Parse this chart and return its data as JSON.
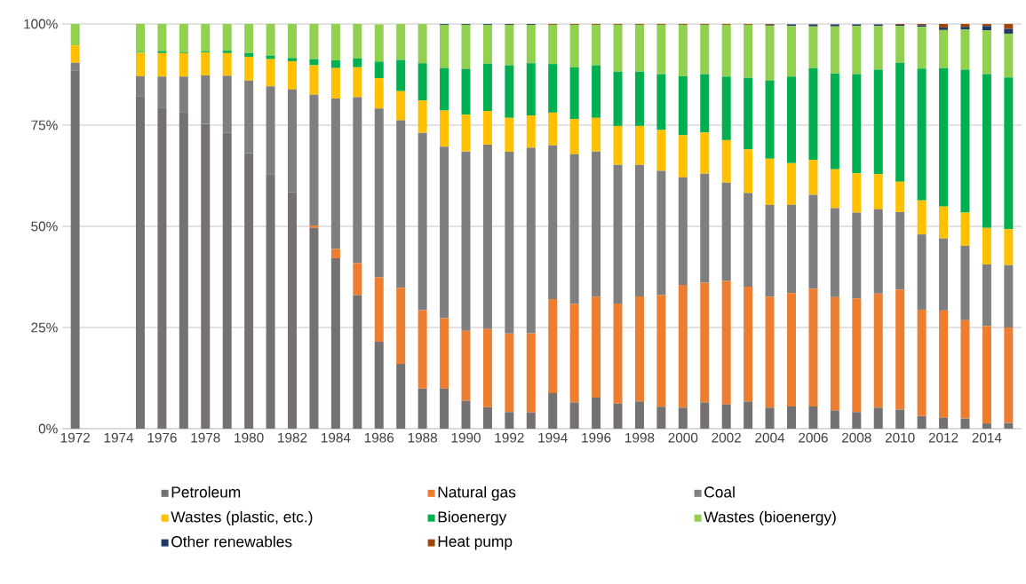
{
  "chart_data": {
    "type": "bar",
    "stacked": true,
    "categories": [
      "1972",
      null,
      "1974",
      null,
      "1976",
      null,
      "1978",
      null,
      "1980",
      null,
      "1982",
      null,
      "1984",
      null,
      "1986",
      null,
      "1988",
      null,
      "1990",
      null,
      "1992",
      null,
      "1994",
      null,
      "1996",
      null,
      "1998",
      null,
      "2000",
      null,
      "2002",
      null,
      "2004",
      null,
      "2006",
      null,
      "2008",
      null,
      "2010",
      null,
      "2012",
      null,
      "2014",
      null
    ],
    "ylim": [
      0,
      100
    ],
    "yticks": [
      {
        "value": 0,
        "label": "0%"
      },
      {
        "value": 25,
        "label": "25%"
      },
      {
        "value": 50,
        "label": "50%"
      },
      {
        "value": 75,
        "label": "75%"
      },
      {
        "value": 100,
        "label": "100%"
      }
    ],
    "grid": "y",
    "legend": "bottom",
    "series": [
      {
        "name": "Petroleum",
        "color": "#767171",
        "values": [
          88.4,
          null,
          null,
          82.2,
          79.2,
          78.1,
          75.3,
          73.1,
          68.1,
          62.9,
          58.4,
          49.6,
          42.1,
          33.0,
          21.5,
          16.0,
          9.9,
          9.9,
          6.9,
          5.3,
          4.1,
          4.0,
          8.8,
          6.5,
          7.7,
          6.2,
          6.7,
          5.4,
          5.2,
          6.5,
          6.0,
          6.7,
          5.2,
          5.5,
          5.5,
          4.5,
          4.1,
          5.2,
          4.7,
          3.1,
          2.7,
          2.5,
          1.3,
          1.4
        ]
      },
      {
        "name": "Natural gas",
        "color": "#ed7d31",
        "values": [
          0,
          null,
          null,
          0,
          0,
          0,
          0,
          0,
          0,
          0,
          0,
          0.6,
          2.3,
          7.9,
          15.9,
          18.8,
          19.4,
          17.4,
          17.3,
          19.3,
          19.4,
          19.6,
          23.2,
          24.3,
          24.9,
          24.7,
          26.0,
          27.6,
          30.3,
          29.6,
          30.5,
          28.4,
          27.4,
          28.0,
          29.1,
          28.0,
          28.1,
          28.2,
          29.7,
          26.3,
          26.5,
          24.3,
          24.1,
          23.6
        ]
      },
      {
        "name": "Coal",
        "color": "#7f7f7f",
        "values": [
          2.0,
          null,
          null,
          4.9,
          7.8,
          8.9,
          12.0,
          14.1,
          17.9,
          21.7,
          25.4,
          32.3,
          37.2,
          41.0,
          41.7,
          41.4,
          43.8,
          42.4,
          44.3,
          45.6,
          44.9,
          45.8,
          38.0,
          37.0,
          35.9,
          34.3,
          32.5,
          30.7,
          26.6,
          26.9,
          24.3,
          23.1,
          22.7,
          21.8,
          23.2,
          22.0,
          21.2,
          20.8,
          19.1,
          18.6,
          17.8,
          18.4,
          15.2,
          15.4
        ]
      },
      {
        "name": "Wastes (plastic, etc.)",
        "color": "#ffc000",
        "values": [
          4.3,
          null,
          null,
          5.8,
          5.8,
          5.8,
          5.7,
          5.6,
          5.9,
          6.7,
          7.0,
          7.3,
          7.5,
          7.4,
          7.5,
          7.2,
          8.0,
          8.9,
          9.1,
          8.3,
          8.4,
          8.0,
          8.1,
          8.7,
          8.3,
          9.6,
          9.6,
          10.1,
          10.4,
          10.2,
          10.5,
          10.8,
          11.4,
          10.3,
          8.6,
          9.6,
          9.7,
          8.7,
          7.5,
          8.4,
          7.9,
          8.2,
          9.0,
          8.9
        ]
      },
      {
        "name": "Bioenergy",
        "color": "#00b050",
        "values": [
          0,
          null,
          null,
          0.2,
          0.5,
          0.2,
          0.3,
          0.6,
          0.9,
          0.9,
          0.8,
          1.5,
          1.9,
          2.2,
          4.1,
          7.7,
          9.2,
          10.5,
          11.3,
          11.7,
          13.0,
          12.9,
          12.0,
          12.8,
          13.0,
          13.4,
          13.4,
          13.8,
          14.6,
          14.4,
          15.7,
          17.7,
          19.3,
          21.4,
          22.7,
          23.7,
          24.5,
          25.8,
          29.4,
          32.6,
          34.2,
          35.3,
          38.0,
          37.5
        ]
      },
      {
        "name": "Wastes (bioenergy)",
        "color": "#92d050",
        "values": [
          5.3,
          null,
          null,
          6.9,
          6.7,
          7.0,
          6.7,
          6.6,
          7.2,
          7.8,
          8.4,
          8.7,
          9.0,
          8.5,
          9.2,
          8.9,
          9.7,
          10.7,
          10.9,
          9.6,
          10.0,
          9.5,
          9.7,
          10.5,
          10.0,
          11.6,
          11.6,
          12.2,
          12.7,
          12.2,
          12.8,
          13.1,
          13.6,
          12.5,
          10.3,
          11.6,
          11.9,
          10.8,
          9.1,
          10.3,
          9.4,
          9.9,
          10.8,
          10.8
        ]
      },
      {
        "name": "Other renewables",
        "color": "#203864",
        "values": [
          0,
          null,
          null,
          0,
          0,
          0,
          0,
          0,
          0,
          0,
          0,
          0,
          0,
          0,
          0,
          0,
          0,
          0.2,
          0.2,
          0.2,
          0.2,
          0.2,
          0,
          0,
          0,
          0,
          0,
          0,
          0,
          0,
          0,
          0,
          0.2,
          0.4,
          0.5,
          0.5,
          0.4,
          0.4,
          0.3,
          0.4,
          0.6,
          0.7,
          1.1,
          1.2
        ]
      },
      {
        "name": "Heat pump",
        "color": "#9e480e",
        "values": [
          0,
          null,
          null,
          0,
          0,
          0,
          0,
          0,
          0,
          0,
          0,
          0,
          0,
          0,
          0,
          0,
          0,
          0,
          0,
          0,
          0,
          0,
          0.2,
          0.2,
          0.2,
          0.2,
          0.2,
          0.2,
          0.2,
          0.2,
          0.2,
          0.2,
          0.2,
          0,
          0,
          0,
          0,
          0,
          0.2,
          0.3,
          0.9,
          0.7,
          0.5,
          1.2
        ]
      }
    ]
  }
}
